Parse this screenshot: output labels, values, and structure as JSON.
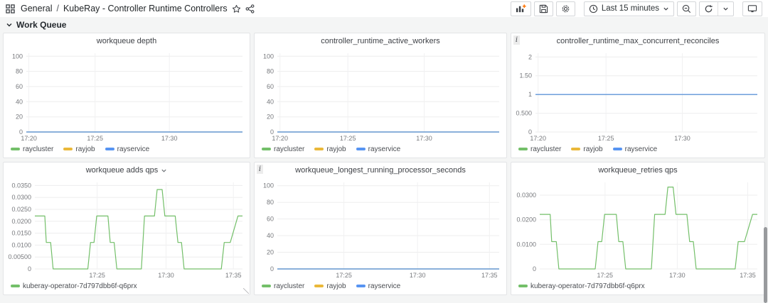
{
  "nav": {
    "breadcrumb": {
      "folder": "General",
      "separator": "/",
      "dashboard": "KubeRay - Controller Runtime Controllers"
    },
    "time_picker": {
      "label": "Last 15 minutes"
    }
  },
  "section": {
    "title": "Work Queue"
  },
  "ui": {
    "info_glyph": "i"
  },
  "colors": {
    "green": "#73BF69",
    "yellow": "#EAB839",
    "blue": "#5794F2",
    "accent_orange": "#FF780A"
  },
  "chart_data": [
    {
      "type": "line",
      "title": "workqueue depth",
      "ylim": [
        0,
        104
      ],
      "axis_width": 32,
      "grid": true,
      "legend_position": "bottom",
      "yticks": [
        {
          "v": 0,
          "label": "0"
        },
        {
          "v": 20,
          "label": "20"
        },
        {
          "v": 40,
          "label": "40"
        },
        {
          "v": 60,
          "label": "60"
        },
        {
          "v": 80,
          "label": "80"
        },
        {
          "v": 100,
          "label": "100"
        }
      ],
      "xticks": [
        {
          "f": 0.012,
          "label": "17:20"
        },
        {
          "f": 0.318,
          "label": "17:25"
        },
        {
          "f": 0.662,
          "label": "17:30"
        }
      ],
      "series": [
        {
          "name": "raycluster",
          "color": "#73BF69",
          "points": [
            [
              0,
              0
            ],
            [
              1,
              0
            ]
          ]
        },
        {
          "name": "rayjob",
          "color": "#EAB839",
          "points": [
            [
              0,
              0
            ],
            [
              1,
              0
            ]
          ]
        },
        {
          "name": "rayservice",
          "color": "#5794F2",
          "points": [
            [
              0,
              0
            ],
            [
              1,
              0
            ]
          ]
        }
      ],
      "legend": [
        {
          "label": "raycluster",
          "color": "#73BF69"
        },
        {
          "label": "rayjob",
          "color": "#EAB839"
        },
        {
          "label": "rayservice",
          "color": "#5794F2"
        }
      ]
    },
    {
      "type": "line",
      "title": "controller_runtime_active_workers",
      "ylim": [
        0,
        104
      ],
      "axis_width": 32,
      "grid": true,
      "legend_position": "bottom",
      "yticks": [
        {
          "v": 0,
          "label": "0"
        },
        {
          "v": 20,
          "label": "20"
        },
        {
          "v": 40,
          "label": "40"
        },
        {
          "v": 60,
          "label": "60"
        },
        {
          "v": 80,
          "label": "80"
        },
        {
          "v": 100,
          "label": "100"
        }
      ],
      "xticks": [
        {
          "f": 0.012,
          "label": "17:20"
        },
        {
          "f": 0.318,
          "label": "17:25"
        },
        {
          "f": 0.662,
          "label": "17:30"
        }
      ],
      "series": [
        {
          "name": "raycluster",
          "color": "#73BF69",
          "points": [
            [
              0,
              0
            ],
            [
              1,
              0
            ]
          ]
        },
        {
          "name": "rayjob",
          "color": "#EAB839",
          "points": [
            [
              0,
              0
            ],
            [
              1,
              0
            ]
          ]
        },
        {
          "name": "rayservice",
          "color": "#5794F2",
          "points": [
            [
              0,
              0
            ],
            [
              1,
              0
            ]
          ]
        }
      ],
      "legend": [
        {
          "label": "raycluster",
          "color": "#73BF69"
        },
        {
          "label": "rayjob",
          "color": "#EAB839"
        },
        {
          "label": "rayservice",
          "color": "#5794F2"
        }
      ]
    },
    {
      "type": "line",
      "title": "controller_runtime_max_concurrent_reconciles",
      "has_info": true,
      "ylim": [
        0,
        2.1
      ],
      "axis_width": 34,
      "grid": true,
      "legend_position": "bottom",
      "yticks": [
        {
          "v": 0,
          "label": "0"
        },
        {
          "v": 0.5,
          "label": "0.500"
        },
        {
          "v": 1,
          "label": "1"
        },
        {
          "v": 1.5,
          "label": "1.50"
        },
        {
          "v": 2,
          "label": "2"
        }
      ],
      "xticks": [
        {
          "f": 0.012,
          "label": "17:20"
        },
        {
          "f": 0.318,
          "label": "17:25"
        },
        {
          "f": 0.662,
          "label": "17:30"
        }
      ],
      "series": [
        {
          "name": "raycluster",
          "color": "#73BF69",
          "points": [
            [
              0,
              1
            ],
            [
              1,
              1
            ]
          ]
        },
        {
          "name": "rayjob",
          "color": "#EAB839",
          "points": [
            [
              0,
              1
            ],
            [
              1,
              1
            ]
          ]
        },
        {
          "name": "rayservice",
          "color": "#5794F2",
          "points": [
            [
              0,
              1
            ],
            [
              1,
              1
            ]
          ]
        }
      ],
      "legend": [
        {
          "label": "raycluster",
          "color": "#73BF69"
        },
        {
          "label": "rayjob",
          "color": "#EAB839"
        },
        {
          "label": "rayservice",
          "color": "#5794F2"
        }
      ]
    },
    {
      "type": "line",
      "title": "workqueue adds qps",
      "has_menu": true,
      "ylim": [
        0,
        0.0363
      ],
      "axis_width": 44,
      "grid": true,
      "legend_position": "bottom",
      "yticks": [
        {
          "v": 0,
          "label": "0"
        },
        {
          "v": 0.005,
          "label": "0.00500"
        },
        {
          "v": 0.01,
          "label": "0.0100"
        },
        {
          "v": 0.015,
          "label": "0.0150"
        },
        {
          "v": 0.02,
          "label": "0.0200"
        },
        {
          "v": 0.025,
          "label": "0.0250"
        },
        {
          "v": 0.03,
          "label": "0.0300"
        },
        {
          "v": 0.035,
          "label": "0.0350"
        }
      ],
      "xticks": [
        {
          "f": 0.3,
          "label": "17:25"
        },
        {
          "f": 0.632,
          "label": "17:30"
        },
        {
          "f": 0.956,
          "label": "17:35"
        }
      ],
      "series": [
        {
          "name": "kuberay-operator-7d797dbb6f-q6prx",
          "color": "#73BF69",
          "points": [
            [
              0,
              0.0222
            ],
            [
              0.048,
              0.0222
            ],
            [
              0.055,
              0.0111
            ],
            [
              0.076,
              0.0111
            ],
            [
              0.088,
              0
            ],
            [
              0.255,
              0
            ],
            [
              0.268,
              0.0111
            ],
            [
              0.285,
              0.0111
            ],
            [
              0.298,
              0.0222
            ],
            [
              0.352,
              0.0222
            ],
            [
              0.363,
              0.0111
            ],
            [
              0.382,
              0.0111
            ],
            [
              0.395,
              0
            ],
            [
              0.513,
              0
            ],
            [
              0.528,
              0.0222
            ],
            [
              0.576,
              0.0222
            ],
            [
              0.589,
              0.0333
            ],
            [
              0.613,
              0.0333
            ],
            [
              0.626,
              0.0222
            ],
            [
              0.676,
              0.0222
            ],
            [
              0.689,
              0.0111
            ],
            [
              0.706,
              0.0111
            ],
            [
              0.719,
              0
            ],
            [
              0.898,
              0
            ],
            [
              0.912,
              0.0111
            ],
            [
              0.941,
              0.0111
            ],
            [
              0.978,
              0.0222
            ],
            [
              1,
              0.0222
            ]
          ]
        }
      ],
      "legend": [
        {
          "label": "kuberay-operator-7d797dbb6f-q6prx",
          "color": "#73BF69"
        }
      ]
    },
    {
      "type": "line",
      "title": "workqueue_longest_running_processor_seconds",
      "has_info": true,
      "ylim": [
        0,
        104
      ],
      "axis_width": 32,
      "grid": true,
      "legend_position": "bottom",
      "yticks": [
        {
          "v": 0,
          "label": "0"
        },
        {
          "v": 20,
          "label": "20"
        },
        {
          "v": 40,
          "label": "40"
        },
        {
          "v": 60,
          "label": "60"
        },
        {
          "v": 80,
          "label": "80"
        },
        {
          "v": 100,
          "label": "100"
        }
      ],
      "xticks": [
        {
          "f": 0.3,
          "label": "17:25"
        },
        {
          "f": 0.632,
          "label": "17:30"
        },
        {
          "f": 0.956,
          "label": "17:35"
        }
      ],
      "series": [
        {
          "name": "raycluster",
          "color": "#73BF69",
          "points": [
            [
              0,
              0
            ],
            [
              1,
              0
            ]
          ]
        },
        {
          "name": "rayjob",
          "color": "#EAB839",
          "points": [
            [
              0,
              0
            ],
            [
              1,
              0
            ]
          ]
        },
        {
          "name": "rayservice",
          "color": "#5794F2",
          "points": [
            [
              0,
              0
            ],
            [
              1,
              0
            ]
          ]
        }
      ],
      "legend": [
        {
          "label": "raycluster",
          "color": "#73BF69"
        },
        {
          "label": "rayjob",
          "color": "#EAB839"
        },
        {
          "label": "rayservice",
          "color": "#5794F2"
        }
      ]
    },
    {
      "type": "line",
      "title": "workqueue_retries qps",
      "ylim": [
        0,
        0.0352
      ],
      "axis_width": 40,
      "grid": true,
      "legend_position": "bottom",
      "yticks": [
        {
          "v": 0,
          "label": "0"
        },
        {
          "v": 0.01,
          "label": "0.0100"
        },
        {
          "v": 0.02,
          "label": "0.0200"
        },
        {
          "v": 0.03,
          "label": "0.0300"
        }
      ],
      "xticks": [
        {
          "f": 0.3,
          "label": "17:25"
        },
        {
          "f": 0.632,
          "label": "17:30"
        },
        {
          "f": 0.956,
          "label": "17:35"
        }
      ],
      "series": [
        {
          "name": "kuberay-operator-7d797dbb6f-q6prx",
          "color": "#73BF69",
          "points": [
            [
              0,
              0.0222
            ],
            [
              0.048,
              0.0222
            ],
            [
              0.055,
              0.0111
            ],
            [
              0.076,
              0.0111
            ],
            [
              0.088,
              0
            ],
            [
              0.255,
              0
            ],
            [
              0.268,
              0.0111
            ],
            [
              0.285,
              0.0111
            ],
            [
              0.298,
              0.0222
            ],
            [
              0.352,
              0.0222
            ],
            [
              0.363,
              0.0111
            ],
            [
              0.382,
              0.0111
            ],
            [
              0.395,
              0
            ],
            [
              0.513,
              0
            ],
            [
              0.528,
              0.0222
            ],
            [
              0.576,
              0.0222
            ],
            [
              0.589,
              0.0333
            ],
            [
              0.613,
              0.0333
            ],
            [
              0.626,
              0.0222
            ],
            [
              0.676,
              0.0222
            ],
            [
              0.689,
              0.0111
            ],
            [
              0.706,
              0.0111
            ],
            [
              0.719,
              0
            ],
            [
              0.898,
              0
            ],
            [
              0.912,
              0.0111
            ],
            [
              0.941,
              0.0111
            ],
            [
              0.978,
              0.0222
            ],
            [
              1,
              0.0222
            ]
          ]
        }
      ],
      "legend": [
        {
          "label": "kuberay-operator-7d797dbb6f-q6prx",
          "color": "#73BF69"
        }
      ]
    }
  ]
}
